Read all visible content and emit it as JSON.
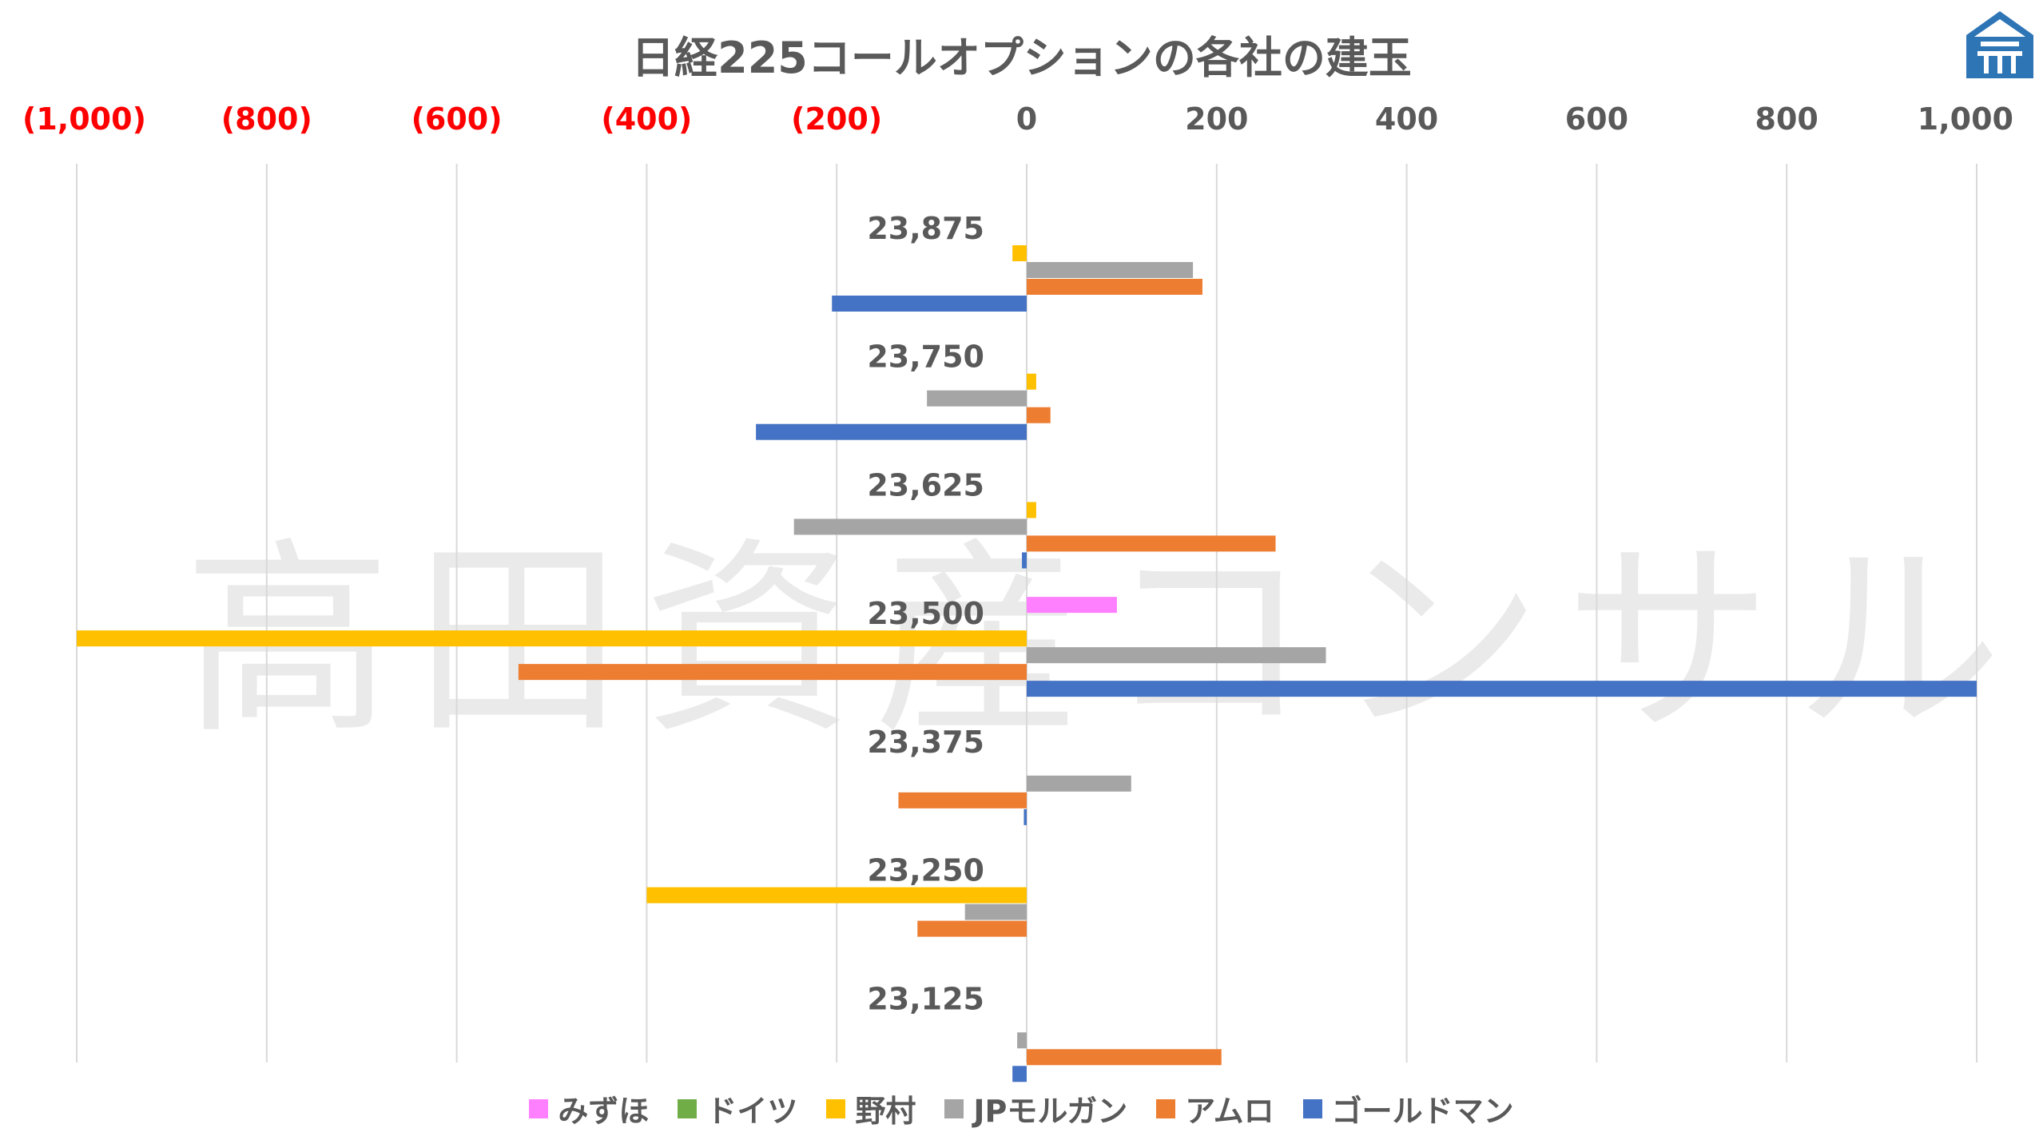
{
  "chart_data": {
    "type": "bar",
    "orientation": "horizontal",
    "title": "日経225コールオプションの各社の建玉",
    "watermark": "高田資産コンサル",
    "xlim": [
      -1000,
      1000
    ],
    "x_ticks": [
      {
        "value": -1000,
        "label": "(1,000)"
      },
      {
        "value": -800,
        "label": "(800)"
      },
      {
        "value": -600,
        "label": "(600)"
      },
      {
        "value": -400,
        "label": "(400)"
      },
      {
        "value": -200,
        "label": "(200)"
      },
      {
        "value": 0,
        "label": "0"
      },
      {
        "value": 200,
        "label": "200"
      },
      {
        "value": 400,
        "label": "400"
      },
      {
        "value": 600,
        "label": "600"
      },
      {
        "value": 800,
        "label": "800"
      },
      {
        "value": 1000,
        "label": "1,000"
      }
    ],
    "negative_tick_color": "#ff0000",
    "positive_tick_color": "#595959",
    "grid": true,
    "legend_position": "bottom",
    "categories": [
      "23,875",
      "23,750",
      "23,625",
      "23,500",
      "23,375",
      "23,250",
      "23,125"
    ],
    "series": [
      {
        "name": "みずほ",
        "color": "#ff80ff",
        "values": [
          0,
          0,
          0,
          95,
          0,
          0,
          0
        ]
      },
      {
        "name": "ドイツ",
        "color": "#70ad47",
        "values": [
          0,
          0,
          0,
          0,
          0,
          0,
          0
        ]
      },
      {
        "name": "野村",
        "color": "#ffc000",
        "values": [
          -15,
          10,
          10,
          -1000,
          0,
          -400,
          0
        ]
      },
      {
        "name": "JPモルガン",
        "color": "#a5a5a5",
        "values": [
          175,
          -105,
          -245,
          315,
          110,
          -65,
          -10
        ]
      },
      {
        "name": "アムロ",
        "color": "#ed7d31",
        "values": [
          185,
          25,
          262,
          -535,
          -135,
          -115,
          205
        ]
      },
      {
        "name": "ゴールドマン",
        "color": "#4472c4",
        "values": [
          -205,
          -285,
          -5,
          1000,
          -3,
          0,
          -15
        ]
      }
    ]
  },
  "logo": {
    "name": "takata-logo",
    "color": "#2e75b6"
  }
}
